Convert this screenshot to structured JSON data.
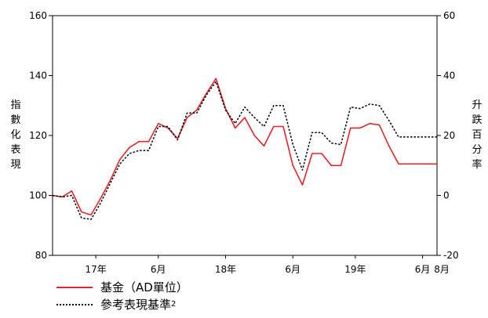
{
  "chart_data": {
    "type": "line",
    "title": "",
    "xlabel": "",
    "ylabel": "指數化表現",
    "ylabel_right": "升跌百分率",
    "ylim": [
      80,
      160
    ],
    "ylim_right": [
      -20,
      60
    ],
    "yticks": [
      80,
      100,
      120,
      140,
      160
    ],
    "yticks_right": [
      -20,
      0,
      20,
      40,
      60
    ],
    "xlim": [
      0,
      40
    ],
    "xticks": [
      {
        "x": 4.5,
        "label": "17年"
      },
      {
        "x": 11,
        "label": "6月"
      },
      {
        "x": 18,
        "label": "18年"
      },
      {
        "x": 25,
        "label": "6月"
      },
      {
        "x": 31.5,
        "label": "19年"
      },
      {
        "x": 38.5,
        "label": "6月"
      },
      {
        "x": 40.5,
        "label": "8月"
      }
    ],
    "x": [
      0,
      1,
      2,
      3,
      4,
      5,
      6,
      7,
      8,
      9,
      10,
      11,
      12,
      13,
      14,
      15,
      16,
      17,
      18,
      19,
      20,
      21,
      22,
      23,
      24,
      25,
      26,
      27,
      28,
      29,
      30,
      31,
      32,
      33,
      34,
      35,
      36,
      37,
      38,
      39,
      40
    ],
    "series": [
      {
        "name": "基金（AD單位）",
        "color": "#e3242b",
        "style": "solid",
        "values": [
          100,
          99.5,
          101.5,
          94.5,
          93.5,
          99,
          105,
          112,
          116,
          118,
          118,
          124,
          122.5,
          119,
          126,
          128.5,
          134,
          139,
          129,
          122.5,
          126,
          120,
          116.5,
          123,
          123,
          110,
          103.5,
          114,
          114,
          110,
          110,
          122.5,
          122.5,
          124,
          123.5,
          116.5,
          110.5,
          110.5,
          110.5,
          110.5,
          110.5
        ]
      },
      {
        "name": "參考表現基準",
        "color": "#000000",
        "style": "dotted",
        "values": [
          100,
          99.5,
          100,
          92.5,
          92,
          97.5,
          104,
          110.5,
          114,
          115,
          115,
          123,
          123,
          118.5,
          127.5,
          127.5,
          133.5,
          138,
          128.5,
          124,
          129.5,
          126,
          123,
          130,
          130,
          117,
          108.5,
          121,
          121,
          117.5,
          117,
          129.5,
          129,
          130.5,
          130,
          125,
          119.5,
          119.5,
          119.5,
          119.5,
          119.5
        ]
      }
    ],
    "legend_placement": "bottom-left",
    "grid": false
  },
  "legend": {
    "fund_label": "基金（AD單位）",
    "bench_label": "參考表現基準",
    "bench_footnote": "2"
  }
}
